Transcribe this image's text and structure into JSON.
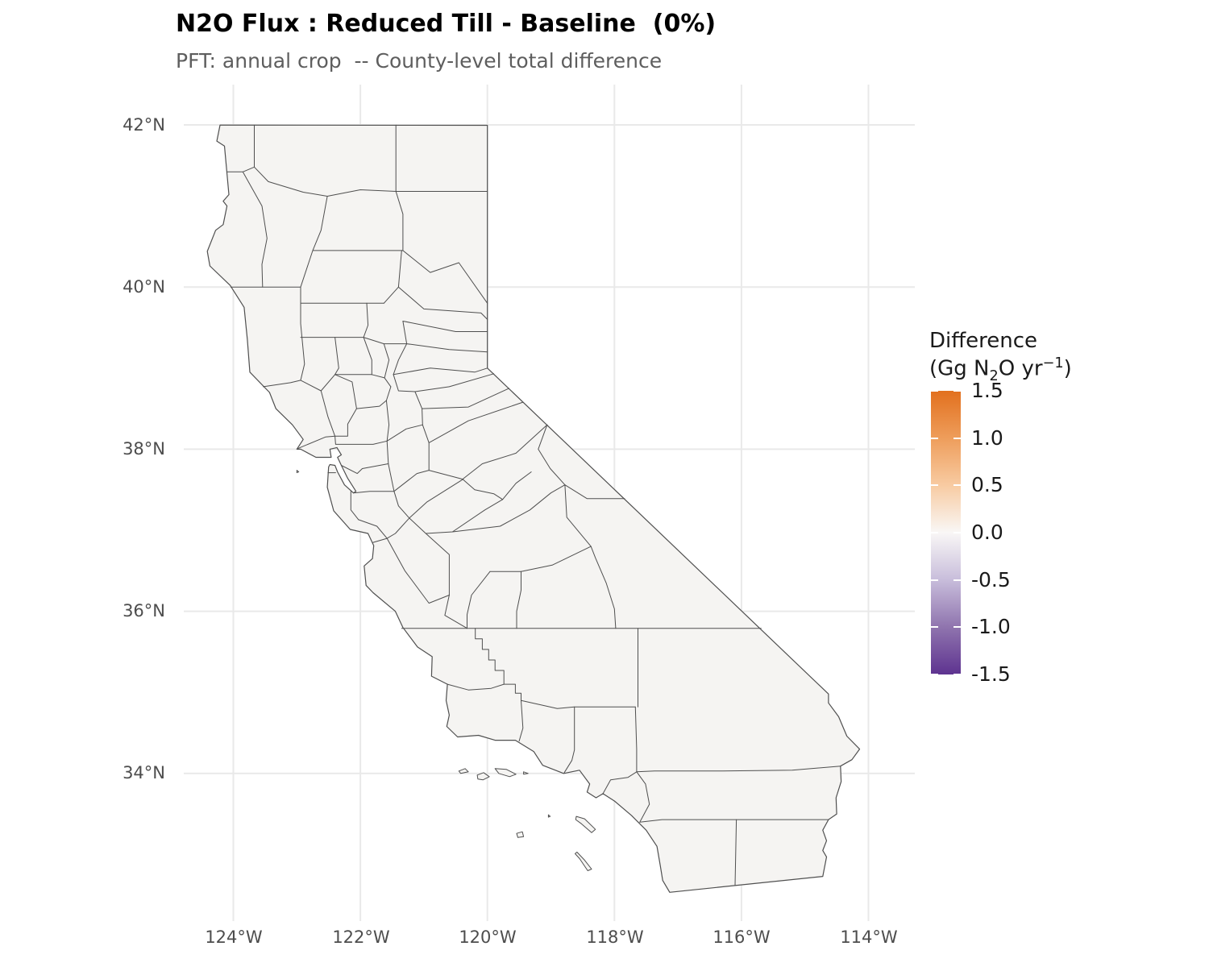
{
  "title": "N2O Flux : Reduced Till - Baseline  (0%)",
  "subtitle": "PFT: annual crop  -- County-level total difference",
  "axes": {
    "y_ticks": [
      "42°N",
      "40°N",
      "38°N",
      "36°N",
      "34°N"
    ],
    "x_ticks": [
      "124°W",
      "122°W",
      "120°W",
      "118°W",
      "116°W",
      "114°W"
    ]
  },
  "legend": {
    "title_line1": "Difference",
    "unit_open": "(Gg N",
    "unit_sub": "2",
    "unit_mid": "O yr",
    "unit_sup": "−1",
    "unit_close": ")",
    "tick_labels": [
      "1.5",
      "1.0",
      "0.5",
      "0.0",
      "-0.5",
      "-1.0",
      "-1.5"
    ]
  },
  "colors": {
    "title_text": "#000000",
    "subtitle_text": "#5e5e5e",
    "axis_text": "#4d4d4d",
    "gridline": "#e9e9e9",
    "county_fill": "#f5f4f2",
    "county_border": "#4f4f4f",
    "legend_text": "#1a1a1a",
    "colorbar_stops": [
      "#E2701E",
      "#EE9D5B",
      "#F8CBA2",
      "#F9F7F6",
      "#C8BDDB",
      "#8F74AE",
      "#5E3390"
    ]
  },
  "chart_data": {
    "type": "choropleth",
    "map_region": "California, USA — county-level polygons (58 counties)",
    "title": "N2O Flux : Reduced Till - Baseline  (0%)",
    "subtitle": "PFT: annual crop  -- County-level total difference",
    "legend_title": "Difference (Gg N2O yr−1)",
    "color_scale": {
      "palette": "PuOr diverging (orange = positive, white = zero, purple = negative)",
      "domain": [
        -1.5,
        1.5
      ],
      "ticks": [
        1.5,
        1.0,
        0.5,
        0.0,
        -0.5,
        -1.0,
        -1.5
      ]
    },
    "values_note": "All counties rendered at ≈ 0.0 Gg N2O yr−1 (Reduced Till minus Baseline at 0% adoption — uniform near-white fill, no county differs visibly from zero)",
    "x_axis": {
      "label": "longitude",
      "ticks_deg_west": [
        124,
        122,
        120,
        118,
        116,
        114
      ]
    },
    "y_axis": {
      "label": "latitude",
      "ticks_deg_north": [
        42,
        40,
        38,
        36,
        34
      ]
    },
    "grid": "major gridlines only, light gray on white panel",
    "legend_position": "right"
  }
}
